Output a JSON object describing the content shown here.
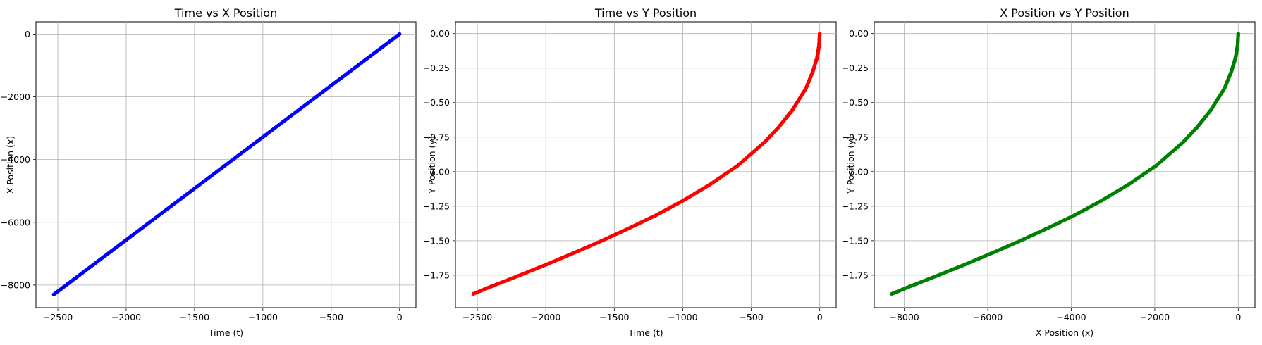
{
  "chart_data": [
    {
      "type": "scatter",
      "title": "Time vs X Position",
      "xlabel": "Time (t)",
      "ylabel": "X Position (x)",
      "xlim": [
        -2660,
        120
      ],
      "ylim": [
        -8720,
        390
      ],
      "xticks": [
        -2500,
        -2000,
        -1500,
        -1000,
        -500,
        0
      ],
      "xtick_labels": [
        "−2500",
        "−2000",
        "−1500",
        "−1000",
        "−500",
        "0"
      ],
      "yticks": [
        -8000,
        -6000,
        -4000,
        -2000,
        0
      ],
      "ytick_labels": [
        "−8000",
        "−6000",
        "−4000",
        "−2000",
        "0"
      ],
      "grid": true,
      "color": "#0000ff",
      "series": [
        {
          "x": [
            -2530,
            -2400,
            -2200,
            -2000,
            -1800,
            -1600,
            -1400,
            -1200,
            -1000,
            -800,
            -600,
            -400,
            -200,
            0
          ],
          "y": [
            -8300,
            -7873,
            -7217,
            -6561,
            -5905,
            -5249,
            -4593,
            -3937,
            -3281,
            -2624,
            -1968,
            -1312,
            -656,
            0
          ]
        }
      ]
    },
    {
      "type": "scatter",
      "title": "Time vs Y Position",
      "xlabel": "Time (t)",
      "ylabel": "Y Position (y)",
      "xlim": [
        -2660,
        120
      ],
      "ylim": [
        -1.985,
        0.085
      ],
      "xticks": [
        -2500,
        -2000,
        -1500,
        -1000,
        -500,
        0
      ],
      "xtick_labels": [
        "−2500",
        "−2000",
        "−1500",
        "−1000",
        "−500",
        "0"
      ],
      "yticks": [
        -1.75,
        -1.5,
        -1.25,
        -1.0,
        -0.75,
        -0.5,
        -0.25,
        0.0
      ],
      "ytick_labels": [
        "−1.75",
        "−1.50",
        "−1.25",
        "−1.00",
        "−0.75",
        "−0.50",
        "−0.25",
        "0.00"
      ],
      "grid": true,
      "color": "#ff0000",
      "series": [
        {
          "x": [
            -2530,
            -2400,
            -2200,
            -2000,
            -1800,
            -1600,
            -1400,
            -1200,
            -1000,
            -800,
            -600,
            -400,
            -300,
            -200,
            -100,
            -50,
            -20,
            -5,
            0
          ],
          "y": [
            -1.885,
            -1.832,
            -1.754,
            -1.674,
            -1.59,
            -1.504,
            -1.413,
            -1.318,
            -1.211,
            -1.092,
            -0.957,
            -0.784,
            -0.678,
            -0.554,
            -0.396,
            -0.274,
            -0.177,
            -0.089,
            0.0
          ]
        }
      ]
    },
    {
      "type": "scatter",
      "title": "X Position vs Y Position",
      "xlabel": "X Position (x)",
      "ylabel": "Y Position (y)",
      "xlim": [
        -8720,
        400
      ],
      "ylim": [
        -1.985,
        0.085
      ],
      "xticks": [
        -8000,
        -6000,
        -4000,
        -2000,
        0
      ],
      "xtick_labels": [
        "−8000",
        "−6000",
        "−4000",
        "−2000",
        "0"
      ],
      "yticks": [
        -1.75,
        -1.5,
        -1.25,
        -1.0,
        -0.75,
        -0.5,
        -0.25,
        0.0
      ],
      "ytick_labels": [
        "−1.75",
        "−1.50",
        "−1.25",
        "−1.00",
        "−0.75",
        "−0.50",
        "−0.25",
        "0.00"
      ],
      "grid": true,
      "color": "#008000",
      "series": [
        {
          "x": [
            -8300,
            -7873,
            -7217,
            -6561,
            -5905,
            -5249,
            -4593,
            -3937,
            -3281,
            -2624,
            -1968,
            -1312,
            -984,
            -656,
            -328,
            -164,
            -66,
            -16,
            0
          ],
          "y": [
            -1.885,
            -1.832,
            -1.754,
            -1.674,
            -1.59,
            -1.504,
            -1.413,
            -1.318,
            -1.211,
            -1.092,
            -0.957,
            -0.784,
            -0.678,
            -0.554,
            -0.396,
            -0.274,
            -0.177,
            -0.089,
            0.0
          ]
        }
      ]
    }
  ]
}
